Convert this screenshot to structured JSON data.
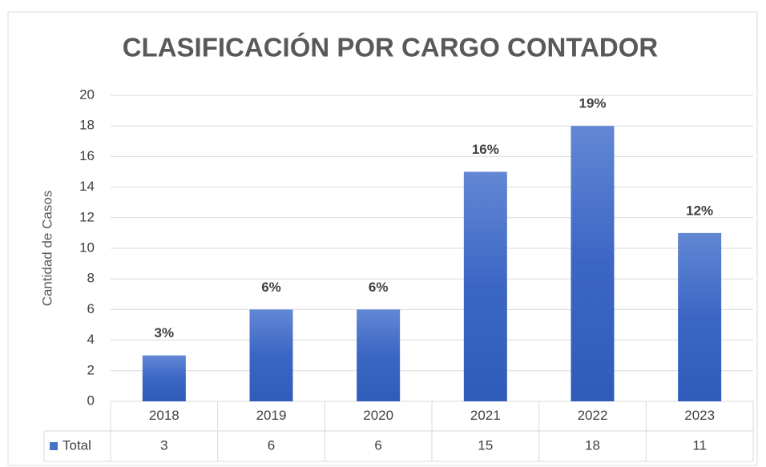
{
  "chart_data": {
    "type": "bar",
    "title": "CLASIFICACIÓN POR CARGO CONTADOR",
    "y_axis_label": "Cantidad de Casos",
    "categories": [
      "2018",
      "2019",
      "2020",
      "2021",
      "2022",
      "2023"
    ],
    "series": [
      {
        "name": "Total",
        "color": "#4472c4",
        "values": [
          3,
          6,
          6,
          15,
          18,
          11
        ]
      }
    ],
    "data_labels": [
      "3%",
      "6%",
      "6%",
      "16%",
      "19%",
      "12%"
    ],
    "ylim": [
      0,
      20
    ],
    "yticks": [
      0,
      2,
      4,
      6,
      8,
      10,
      12,
      14,
      16,
      18,
      20
    ],
    "grid": true
  }
}
